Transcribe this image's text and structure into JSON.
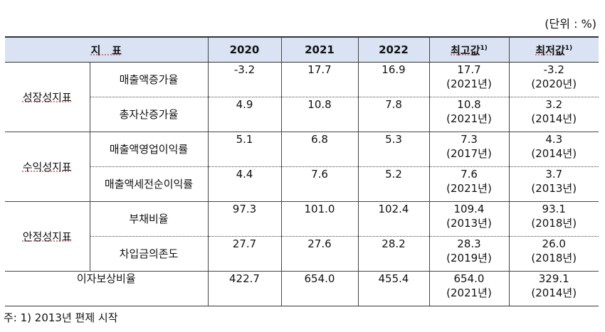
{
  "unit": "(단위 : %)",
  "headers": {
    "indicator": "지   표",
    "y2020": "2020",
    "y2021": "2021",
    "y2022": "2022",
    "max": "최고값",
    "min": "최저값",
    "footnote_mark": "1)"
  },
  "groups": [
    {
      "name": "성장성지표",
      "rows": [
        {
          "label": "매출액증가율",
          "v2020": "-3.2",
          "v2021": "17.7",
          "v2022": "16.9",
          "max": "17.7",
          "max_year": "(2021년)",
          "min": "-3.2",
          "min_year": "(2020년)"
        },
        {
          "label": "총자산증가율",
          "v2020": "4.9",
          "v2021": "10.8",
          "v2022": "7.8",
          "max": "10.8",
          "max_year": "(2021년)",
          "min": "3.2",
          "min_year": "(2014년)"
        }
      ]
    },
    {
      "name": "수익성지표",
      "rows": [
        {
          "label": "매출액영업이익률",
          "v2020": "5.1",
          "v2021": "6.8",
          "v2022": "5.3",
          "max": "7.3",
          "max_year": "(2017년)",
          "min": "4.3",
          "min_year": "(2014년)"
        },
        {
          "label": "매출액세전순이익률",
          "v2020": "4.4",
          "v2021": "7.6",
          "v2022": "5.2",
          "max": "7.6",
          "max_year": "(2021년)",
          "min": "3.7",
          "min_year": "(2013년)"
        }
      ]
    },
    {
      "name": "안정성지표",
      "rows": [
        {
          "label": "부채비율",
          "v2020": "97.3",
          "v2021": "101.0",
          "v2022": "102.4",
          "max": "109.4",
          "max_year": "(2013년)",
          "min": "93.1",
          "min_year": "(2018년)"
        },
        {
          "label": "차입금의존도",
          "v2020": "27.7",
          "v2021": "27.6",
          "v2022": "28.2",
          "max": "28.3",
          "max_year": "(2019년)",
          "min": "26.0",
          "min_year": "(2018년)"
        }
      ]
    }
  ],
  "interest": {
    "label": "이자보상비율",
    "v2020": "422.7",
    "v2021": "654.0",
    "v2022": "455.4",
    "max": "654.0",
    "max_year": "(2021년)",
    "min": "329.1",
    "min_year": "(2014년)"
  },
  "note": "주: 1) 2013년 편제 시작"
}
